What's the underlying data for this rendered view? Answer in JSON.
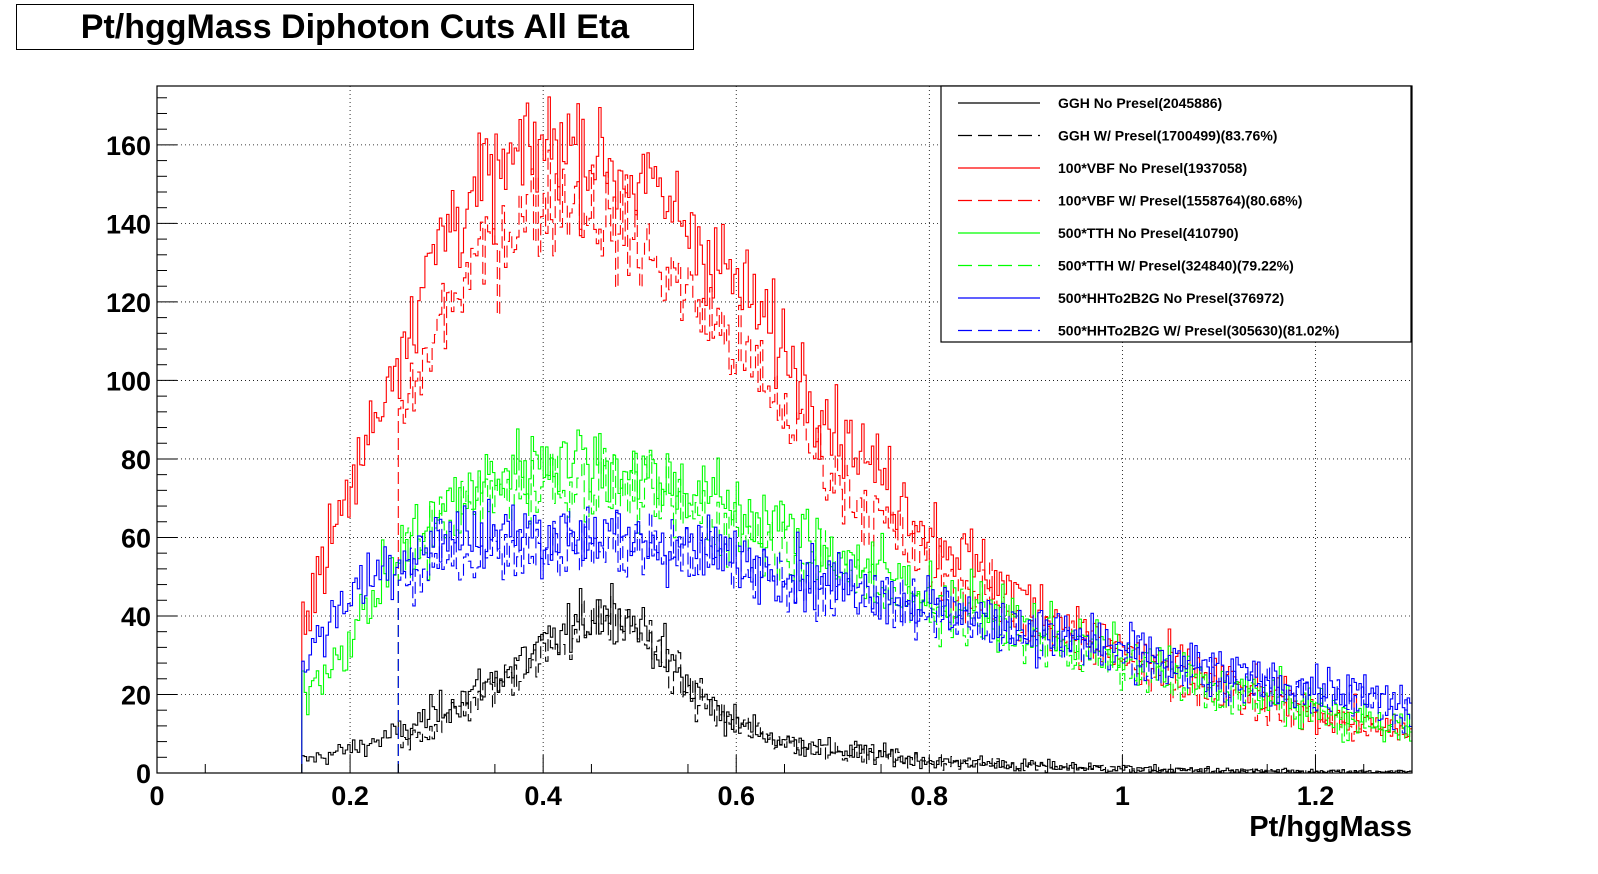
{
  "title": "Pt/hggMass Diphoton Cuts All Eta",
  "chart_data": {
    "type": "line",
    "title": "Pt/hggMass Diphoton Cuts All Eta",
    "xlabel": "Pt/hggMass",
    "ylabel": "",
    "xlim": [
      0,
      1.3
    ],
    "ylim": [
      0,
      175
    ],
    "grid": true,
    "legend_position": "top-right",
    "x_ticks": [
      "0",
      "0.2",
      "0.4",
      "0.6",
      "0.8",
      "1",
      "1.2"
    ],
    "y_ticks": [
      "0",
      "20",
      "40",
      "60",
      "80",
      "100",
      "120",
      "140",
      "160"
    ],
    "series": [
      {
        "name": "GGH No Presel(2045886)",
        "color": "#000000",
        "dash": "solid",
        "x": [
          0.15,
          0.2,
          0.25,
          0.3,
          0.35,
          0.4,
          0.45,
          0.47,
          0.5,
          0.55,
          0.6,
          0.65,
          0.7,
          0.8,
          0.9,
          1.0,
          1.1,
          1.2,
          1.3
        ],
        "y": [
          3,
          6,
          10,
          17,
          24,
          32,
          40,
          42,
          38,
          22,
          13,
          8,
          6,
          3,
          2,
          1,
          0.5,
          0.3,
          0.2
        ]
      },
      {
        "name": "GGH W/ Presel(1700499)(83.76%)",
        "color": "#000000",
        "dash": "dashed",
        "x": [
          0.25,
          0.3,
          0.35,
          0.4,
          0.45,
          0.47,
          0.5,
          0.55,
          0.6,
          0.65,
          0.7,
          0.8,
          0.9,
          1.0,
          1.1,
          1.2,
          1.3
        ],
        "y": [
          6,
          14,
          22,
          30,
          38,
          40,
          36,
          21,
          12,
          8,
          6,
          3,
          2,
          1,
          0.5,
          0.3,
          0.2
        ]
      },
      {
        "name": "100*VBF No Presel(1937058)",
        "color": "#ff0000",
        "dash": "solid",
        "x": [
          0.15,
          0.2,
          0.25,
          0.3,
          0.35,
          0.4,
          0.42,
          0.45,
          0.5,
          0.55,
          0.6,
          0.65,
          0.7,
          0.8,
          0.9,
          1.0,
          1.1,
          1.2,
          1.3
        ],
        "y": [
          40,
          72,
          108,
          140,
          152,
          160,
          162,
          158,
          150,
          140,
          125,
          108,
          90,
          62,
          44,
          32,
          24,
          16,
          10
        ]
      },
      {
        "name": "100*VBF W/ Presel(1558764)(80.68%)",
        "color": "#ff0000",
        "dash": "dashed",
        "x": [
          0.25,
          0.3,
          0.35,
          0.4,
          0.42,
          0.45,
          0.5,
          0.55,
          0.6,
          0.65,
          0.7,
          0.8,
          0.9,
          1.0,
          1.1,
          1.2,
          1.3
        ],
        "y": [
          88,
          118,
          136,
          146,
          148,
          144,
          134,
          122,
          108,
          92,
          76,
          52,
          38,
          28,
          20,
          14,
          9
        ]
      },
      {
        "name": "500*TTH No Presel(410790)",
        "color": "#00ff00",
        "dash": "solid",
        "x": [
          0.15,
          0.2,
          0.25,
          0.3,
          0.35,
          0.4,
          0.45,
          0.5,
          0.55,
          0.6,
          0.65,
          0.7,
          0.75,
          0.8,
          0.85,
          0.9,
          1.0,
          1.1,
          1.2,
          1.3
        ],
        "y": [
          20,
          34,
          56,
          68,
          76,
          81,
          80,
          77,
          73,
          68,
          63,
          57,
          52,
          46,
          42,
          38,
          30,
          23,
          17,
          12
        ]
      },
      {
        "name": "500*TTH W/ Presel(324840)(79.22%)",
        "color": "#00ff00",
        "dash": "dashed",
        "x": [
          0.25,
          0.3,
          0.35,
          0.4,
          0.45,
          0.5,
          0.55,
          0.6,
          0.65,
          0.7,
          0.75,
          0.8,
          0.85,
          0.9,
          1.0,
          1.1,
          1.2,
          1.3
        ],
        "y": [
          52,
          64,
          71,
          74,
          73,
          71,
          67,
          62,
          57,
          52,
          47,
          42,
          38,
          34,
          27,
          20,
          15,
          10
        ]
      },
      {
        "name": "500*HHTo2B2G No Presel(376972)",
        "color": "#0000ff",
        "dash": "solid",
        "x": [
          0.15,
          0.2,
          0.25,
          0.3,
          0.35,
          0.4,
          0.45,
          0.5,
          0.55,
          0.6,
          0.65,
          0.7,
          0.75,
          0.8,
          0.85,
          0.9,
          1.0,
          1.1,
          1.2,
          1.3
        ],
        "y": [
          28,
          46,
          55,
          60,
          62,
          61,
          61,
          59,
          58,
          55,
          52,
          49,
          46,
          43,
          40,
          37,
          32,
          26,
          22,
          18
        ]
      },
      {
        "name": "500*HHTo2B2G W/ Presel(305630)(81.02%)",
        "color": "#0000ff",
        "dash": "dashed",
        "x": [
          0.25,
          0.3,
          0.35,
          0.4,
          0.45,
          0.5,
          0.55,
          0.6,
          0.65,
          0.7,
          0.75,
          0.8,
          0.85,
          0.9,
          1.0,
          1.1,
          1.2,
          1.3
        ],
        "y": [
          48,
          54,
          57,
          58,
          58,
          57,
          56,
          53,
          50,
          47,
          44,
          41,
          38,
          35,
          30,
          24,
          19,
          15
        ]
      }
    ]
  }
}
